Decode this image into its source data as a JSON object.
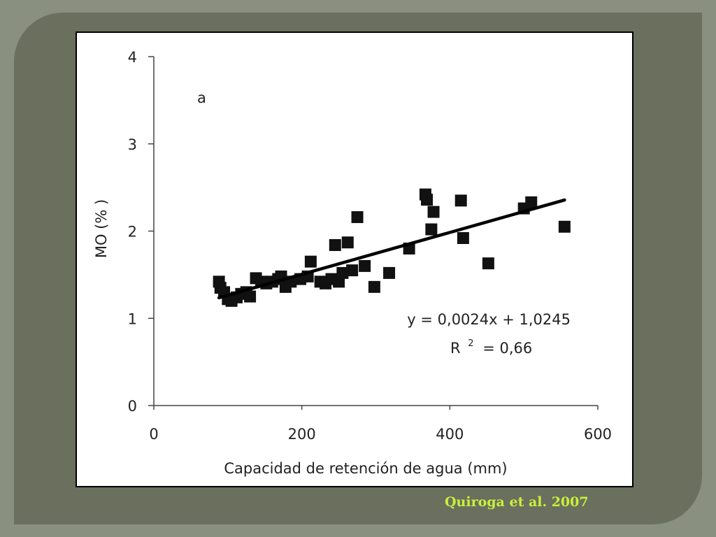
{
  "citation": "Quiroga et al. 2007",
  "colors": {
    "frame": "#6b6f5e",
    "background": "#8a9080",
    "citation": "#c8f03a",
    "marker": "#111111"
  },
  "chart_data": {
    "type": "scatter",
    "panel_label": "a",
    "xlabel": "Capacidad de retención de agua (mm)",
    "ylabel": "MO (% )",
    "xlim": [
      0,
      600
    ],
    "ylim": [
      0,
      4
    ],
    "xticks": [
      0,
      200,
      400,
      600
    ],
    "yticks": [
      0,
      1,
      2,
      3,
      4
    ],
    "grid": false,
    "trendline": {
      "slope": 0.0024,
      "intercept": 1.0245,
      "x_range": [
        88,
        555
      ]
    },
    "equation": "y = 0,0024x + 1,0245",
    "r2_prefix": "R",
    "r2_exponent": "2",
    "r2_value": "= 0,66",
    "points": [
      [
        88,
        1.42
      ],
      [
        90,
        1.35
      ],
      [
        95,
        1.3
      ],
      [
        100,
        1.22
      ],
      [
        105,
        1.2
      ],
      [
        112,
        1.24
      ],
      [
        118,
        1.28
      ],
      [
        125,
        1.3
      ],
      [
        130,
        1.25
      ],
      [
        138,
        1.46
      ],
      [
        145,
        1.42
      ],
      [
        152,
        1.4
      ],
      [
        160,
        1.42
      ],
      [
        168,
        1.45
      ],
      [
        172,
        1.48
      ],
      [
        178,
        1.36
      ],
      [
        185,
        1.42
      ],
      [
        198,
        1.45
      ],
      [
        208,
        1.48
      ],
      [
        212,
        1.65
      ],
      [
        225,
        1.42
      ],
      [
        232,
        1.4
      ],
      [
        240,
        1.45
      ],
      [
        245,
        1.84
      ],
      [
        250,
        1.42
      ],
      [
        255,
        1.52
      ],
      [
        262,
        1.87
      ],
      [
        268,
        1.55
      ],
      [
        275,
        2.16
      ],
      [
        285,
        1.6
      ],
      [
        298,
        1.36
      ],
      [
        318,
        1.52
      ],
      [
        345,
        1.8
      ],
      [
        367,
        2.42
      ],
      [
        369,
        2.36
      ],
      [
        375,
        2.02
      ],
      [
        378,
        2.22
      ],
      [
        415,
        2.35
      ],
      [
        418,
        1.92
      ],
      [
        452,
        1.63
      ],
      [
        500,
        2.26
      ],
      [
        510,
        2.33
      ],
      [
        555,
        2.05
      ]
    ]
  }
}
